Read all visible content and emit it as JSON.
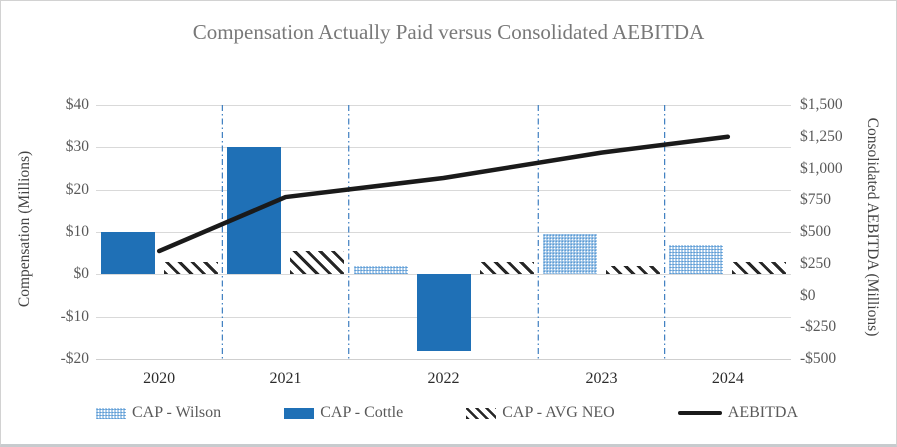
{
  "title": "Compensation Actually Paid versus Consolidated AEBITDA",
  "left_axis": {
    "title": "Compensation (Millions)",
    "tick_labels": [
      "$40",
      "$30",
      "$20",
      "$10",
      "$0",
      "-$10",
      "-$20"
    ],
    "max": 40,
    "min": -20
  },
  "right_axis": {
    "title": "Consolidated AEBITDA (Millions)",
    "tick_labels": [
      "$1,500",
      "$1,250",
      "$1,000",
      "$750",
      "$500",
      "$250",
      "$0",
      "-$250",
      "-$500"
    ],
    "max": 1500,
    "min": -500
  },
  "legend": {
    "items": [
      {
        "label": "CAP - Wilson",
        "swatch": "dotted"
      },
      {
        "label": "CAP - Cottle",
        "swatch": "solid"
      },
      {
        "label": "CAP - AVG NEO",
        "swatch": "hatch"
      },
      {
        "label": "AEBITDA",
        "swatch": "line"
      }
    ]
  },
  "colors": {
    "cottle_blue": "#1f70b6",
    "wilson_light_blue": "#9dc3e6",
    "wilson_dot_blue": "#5b9bd5",
    "hatch_dark": "#262626",
    "aebitda_line": "#1a1a1a",
    "separator_blue": "#3d7ec0",
    "gridline_gray": "#d9d9d9",
    "title_gray": "#787878",
    "tick_gray": "#595959"
  },
  "chart_data": {
    "type": "bar",
    "subtype": "clustered-bars-with-line",
    "title": "Compensation Actually Paid versus Consolidated AEBITDA",
    "categories": [
      "2020",
      "2021",
      "2022",
      "2023",
      "2024"
    ],
    "series": [
      {
        "name": "CAP - Wilson",
        "type": "bar",
        "axis": "left",
        "pattern": "dotted",
        "values": [
          null,
          null,
          2,
          9.5,
          7
        ]
      },
      {
        "name": "CAP - Cottle",
        "type": "bar",
        "axis": "left",
        "pattern": "solid",
        "values": [
          10,
          30,
          -18,
          null,
          null
        ]
      },
      {
        "name": "CAP - AVG NEO",
        "type": "bar",
        "axis": "left",
        "pattern": "hatch",
        "values": [
          3,
          5.5,
          3,
          2,
          3
        ]
      },
      {
        "name": "AEBITDA",
        "type": "line",
        "axis": "right",
        "values": [
          350,
          775,
          925,
          1125,
          1250
        ]
      }
    ],
    "xlabel": "",
    "ylabel_left": "Compensation (Millions)",
    "ylabel_right": "Consolidated AEBITDA (Millions)",
    "ylim_left": [
      -20,
      40
    ],
    "ylim_right": [
      -500,
      1500
    ],
    "grid": "horizontal",
    "category_separators": "dash-dot vertical lines between year groups",
    "legend_position": "bottom"
  }
}
